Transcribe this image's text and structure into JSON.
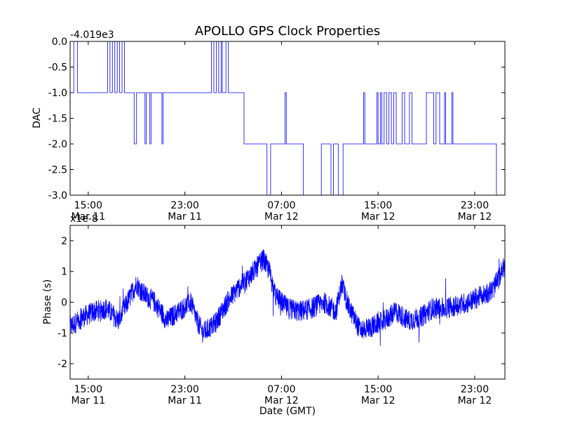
{
  "title": "APOLLO GPS Clock Properties",
  "chart_data": [
    {
      "type": "line",
      "ylabel": "DAC",
      "xlabel": "",
      "offset_label": "-4.019e3",
      "ylim": [
        -3.0,
        0.0
      ],
      "yticks": [
        0.0,
        -0.5,
        -1.0,
        -1.5,
        -2.0,
        -2.5,
        -3.0
      ],
      "ytick_labels": [
        "0.0",
        "-0.5",
        "-1.0",
        "-1.5",
        "-2.0",
        "-2.5",
        "-3.0"
      ],
      "x_hours_since_start": [
        1.5,
        9.5,
        17.5,
        25.5,
        33.5
      ],
      "xtick_labels": [
        [
          "15:00",
          "Mar 11"
        ],
        [
          "23:00",
          "Mar 11"
        ],
        [
          "07:00",
          "Mar 12"
        ],
        [
          "15:00",
          "Mar 12"
        ],
        [
          "23:00",
          "Mar 12"
        ]
      ],
      "x_range_hours": [
        0,
        36
      ],
      "series": [
        {
          "color": "#0000ff",
          "steps": [
            [
              0.0,
              -1
            ],
            [
              0.3,
              0
            ],
            [
              0.6,
              -1
            ],
            [
              3.1,
              0
            ],
            [
              3.3,
              -1
            ],
            [
              3.5,
              0
            ],
            [
              3.7,
              -1
            ],
            [
              3.9,
              0
            ],
            [
              4.1,
              -1
            ],
            [
              4.3,
              0
            ],
            [
              4.5,
              -1
            ],
            [
              5.2,
              -1
            ],
            [
              5.3,
              -2
            ],
            [
              5.5,
              -1
            ],
            [
              6.2,
              -2
            ],
            [
              6.3,
              -1
            ],
            [
              6.6,
              -2
            ],
            [
              6.7,
              -1
            ],
            [
              7.6,
              -2
            ],
            [
              7.7,
              -1
            ],
            [
              11.7,
              0
            ],
            [
              11.9,
              -1
            ],
            [
              12.1,
              0
            ],
            [
              12.3,
              -1
            ],
            [
              12.5,
              0
            ],
            [
              12.6,
              -1
            ],
            [
              12.9,
              0
            ],
            [
              13.1,
              -1
            ],
            [
              14.4,
              -2
            ],
            [
              15.0,
              -2
            ],
            [
              16.3,
              -3
            ],
            [
              16.6,
              -2
            ],
            [
              17.8,
              -1
            ],
            [
              17.9,
              -2
            ],
            [
              19.1,
              -2
            ],
            [
              19.3,
              -3
            ],
            [
              20.0,
              -3
            ],
            [
              20.8,
              -2
            ],
            [
              21.6,
              -3
            ],
            [
              21.8,
              -2
            ],
            [
              22.2,
              -3
            ],
            [
              22.6,
              -2
            ],
            [
              24.3,
              -1
            ],
            [
              24.4,
              -2
            ],
            [
              25.0,
              -2
            ],
            [
              25.4,
              -1
            ],
            [
              25.5,
              -2
            ],
            [
              25.7,
              -1
            ],
            [
              25.8,
              -2
            ],
            [
              26.0,
              -1
            ],
            [
              26.2,
              -2
            ],
            [
              26.4,
              -1
            ],
            [
              26.6,
              -2
            ],
            [
              26.8,
              -1
            ],
            [
              27.0,
              -2
            ],
            [
              27.5,
              -1
            ],
            [
              27.7,
              -2
            ],
            [
              28.1,
              -1
            ],
            [
              28.3,
              -2
            ],
            [
              29.5,
              -1
            ],
            [
              29.8,
              -1
            ],
            [
              30.1,
              -2
            ],
            [
              30.3,
              -1
            ],
            [
              30.6,
              -2
            ],
            [
              31.0,
              -1
            ],
            [
              31.1,
              -2
            ],
            [
              31.6,
              -1
            ],
            [
              31.7,
              -2
            ],
            [
              35.3,
              -3
            ],
            [
              35.9,
              -3
            ]
          ]
        }
      ]
    },
    {
      "type": "line",
      "ylabel": "Phase (s)",
      "xlabel": "Date (GMT)",
      "offset_label": "x1e-8",
      "ylim": [
        -2.5,
        2.5
      ],
      "yticks": [
        2,
        1,
        0,
        -1,
        -2
      ],
      "ytick_labels": [
        "2",
        "1",
        "0",
        "-1",
        "-2"
      ],
      "x_hours_since_start": [
        1.5,
        9.5,
        17.5,
        25.5,
        33.5
      ],
      "xtick_labels": [
        [
          "15:00",
          "Mar 11"
        ],
        [
          "23:00",
          "Mar 11"
        ],
        [
          "07:00",
          "Mar 12"
        ],
        [
          "15:00",
          "Mar 12"
        ],
        [
          "23:00",
          "Mar 12"
        ]
      ],
      "x_range_hours": [
        0,
        36
      ],
      "series": [
        {
          "color": "#0000ff",
          "trend_x": [
            0,
            1,
            2,
            3,
            4,
            5,
            5.5,
            6,
            7,
            8,
            9,
            10,
            10.5,
            11,
            12,
            13,
            14,
            15,
            16,
            16.5,
            17,
            18,
            19,
            20,
            21,
            22,
            22.5,
            23,
            24,
            25,
            26,
            27,
            28,
            29,
            30,
            31,
            32,
            33,
            34,
            35,
            36
          ],
          "trend_y": [
            -0.8,
            -0.5,
            -0.3,
            -0.2,
            -0.6,
            0.2,
            0.6,
            0.3,
            0.0,
            -0.6,
            -0.3,
            0.0,
            -0.6,
            -1.0,
            -0.7,
            0.0,
            0.5,
            0.9,
            1.4,
            1.0,
            0.2,
            -0.2,
            -0.3,
            -0.2,
            0.0,
            -0.3,
            0.6,
            -0.1,
            -0.9,
            -0.8,
            -0.6,
            -0.3,
            -0.6,
            -0.5,
            -0.2,
            -0.2,
            -0.1,
            0.0,
            0.2,
            0.4,
            1.2
          ],
          "noise_amplitude": 0.35
        }
      ]
    }
  ]
}
